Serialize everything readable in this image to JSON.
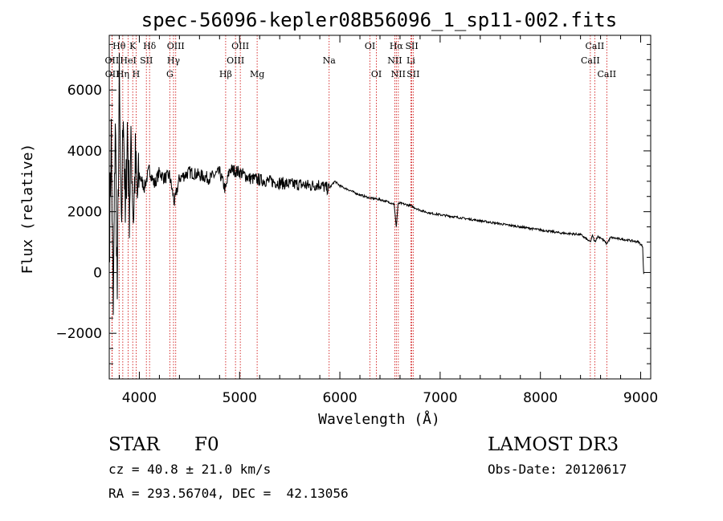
{
  "chart_data": {
    "type": "line",
    "title": "spec-56096-kepler08B56096_1_sp11-002.fits",
    "xlabel": "Wavelength (Å)",
    "ylabel": "Flux (relative)",
    "xlim": [
      3700,
      9100
    ],
    "ylim": [
      -3500,
      7800
    ],
    "x_ticks": [
      4000,
      5000,
      6000,
      7000,
      8000,
      9000
    ],
    "x_tick_labels": [
      "4000",
      "5000",
      "6000",
      "7000",
      "8000",
      "9000"
    ],
    "y_ticks": [
      -2000,
      0,
      2000,
      4000,
      6000
    ],
    "y_tick_labels": [
      "−2000",
      "0",
      "2000",
      "4000",
      "6000"
    ],
    "grid": false,
    "series": [
      {
        "name": "flux",
        "x": [
          3700,
          3720,
          3740,
          3760,
          3780,
          3800,
          3820,
          3840,
          3860,
          3880,
          3900,
          3920,
          3940,
          3960,
          3980,
          4000,
          4050,
          4100,
          4150,
          4200,
          4250,
          4300,
          4350,
          4400,
          4500,
          4600,
          4700,
          4800,
          4860,
          4900,
          5000,
          5100,
          5200,
          5300,
          5400,
          5500,
          5600,
          5700,
          5800,
          5850,
          5890,
          5950,
          6000,
          6100,
          6200,
          6300,
          6400,
          6500,
          6540,
          6563,
          6580,
          6600,
          6700,
          6800,
          6900,
          7000,
          7200,
          7400,
          7600,
          7800,
          8000,
          8200,
          8400,
          8498,
          8520,
          8542,
          8570,
          8600,
          8662,
          8700,
          8800,
          8900,
          8980,
          9020,
          9030
        ],
        "values": [
          800,
          4500,
          -1500,
          5200,
          -800,
          6200,
          1000,
          5800,
          1500,
          4800,
          2200,
          4200,
          1800,
          3600,
          2400,
          3200,
          2800,
          3400,
          2900,
          3300,
          3100,
          3200,
          2300,
          3100,
          3300,
          3200,
          3100,
          3300,
          2700,
          3400,
          3300,
          3100,
          3050,
          3000,
          2950,
          2900,
          2900,
          2850,
          2900,
          2800,
          2750,
          3000,
          2850,
          2700,
          2550,
          2450,
          2400,
          2300,
          2250,
          1500,
          2250,
          2280,
          2200,
          2050,
          1950,
          1900,
          1800,
          1700,
          1600,
          1500,
          1400,
          1300,
          1250,
          1000,
          1220,
          1000,
          1180,
          1150,
          950,
          1150,
          1100,
          1050,
          1000,
          850,
          -50
        ]
      }
    ],
    "lines": [
      {
        "label": "Hθ",
        "wl": 3798,
        "row": 0
      },
      {
        "label": "OII",
        "wl": 3727,
        "row": 1
      },
      {
        "label": "OII",
        "wl": 3729,
        "row": 2
      },
      {
        "label": "Hη",
        "wl": 3835,
        "row": 2
      },
      {
        "label": "HeI",
        "wl": 3889,
        "row": 1
      },
      {
        "label": "K",
        "wl": 3934,
        "row": 0
      },
      {
        "label": "H",
        "wl": 3968,
        "row": 2
      },
      {
        "label": "SII",
        "wl": 4070,
        "row": 1
      },
      {
        "label": "Hδ",
        "wl": 4102,
        "row": 0
      },
      {
        "label": "OIII",
        "wl": 4363,
        "row": 0
      },
      {
        "label": "Hγ",
        "wl": 4341,
        "row": 1
      },
      {
        "label": "G",
        "wl": 4304,
        "row": 2
      },
      {
        "label": "Hβ",
        "wl": 4861,
        "row": 2
      },
      {
        "label": "OIII",
        "wl": 4959,
        "row": 1
      },
      {
        "label": "OIII",
        "wl": 5007,
        "row": 0
      },
      {
        "label": "Mg",
        "wl": 5175,
        "row": 2
      },
      {
        "label": "Na",
        "wl": 5893,
        "row": 1
      },
      {
        "label": "OI",
        "wl": 6300,
        "row": 0
      },
      {
        "label": "OI",
        "wl": 6364,
        "row": 2
      },
      {
        "label": "NII",
        "wl": 6548,
        "row": 1
      },
      {
        "label": "Hα",
        "wl": 6563,
        "row": 0
      },
      {
        "label": "NII",
        "wl": 6583,
        "row": 2
      },
      {
        "label": "Li",
        "wl": 6708,
        "row": 1
      },
      {
        "label": "SII",
        "wl": 6717,
        "row": 0
      },
      {
        "label": "SII",
        "wl": 6731,
        "row": 2
      },
      {
        "label": "CaII",
        "wl": 8498,
        "row": 1
      },
      {
        "label": "CaII",
        "wl": 8542,
        "row": 0
      },
      {
        "label": "CaII",
        "wl": 8662,
        "row": 2
      }
    ],
    "colors": {
      "axis": "#000000",
      "series": "#000000",
      "line_markers": "#cc0000"
    }
  },
  "info": {
    "object_class": "STAR",
    "subclass": "F0",
    "survey": "LAMOST DR3",
    "cz": "cz = 40.8 ± 21.0 km/s",
    "obs_date": "Obs-Date: 20120617",
    "coords": "RA = 293.56704, DEC =  42.13056"
  }
}
